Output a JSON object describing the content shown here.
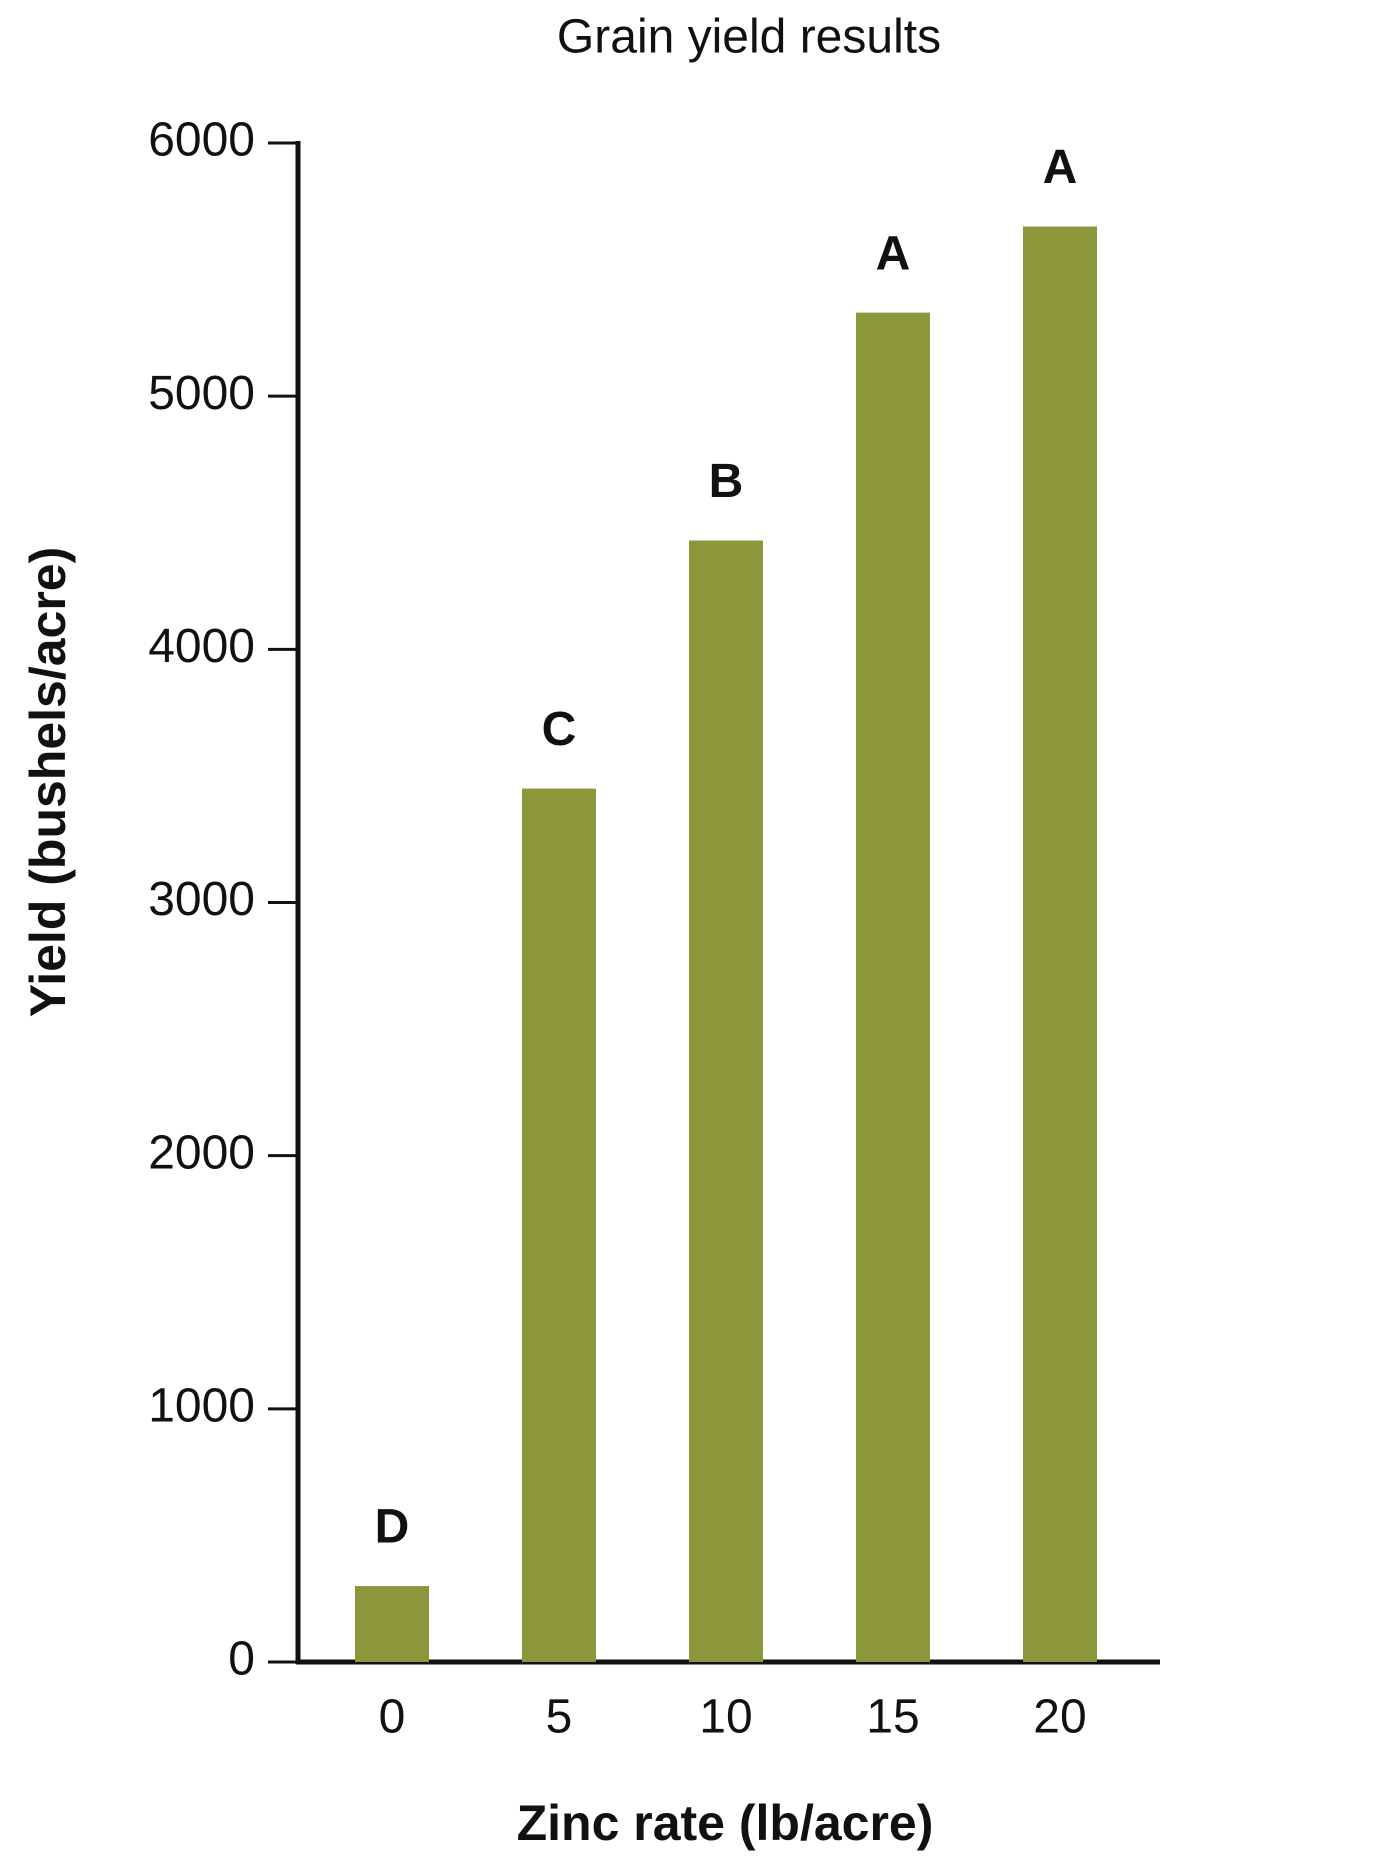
{
  "chart_data": {
    "type": "bar",
    "title": "Grain yield results",
    "x_label": "Zinc rate (lb/acre)",
    "y_label": "Yield (bushels/acre)",
    "categories": [
      "0",
      "5",
      "10",
      "15",
      "20"
    ],
    "values": [
      300,
      3450,
      4430,
      5330,
      5670
    ],
    "significance_labels": [
      "D",
      "C",
      "B",
      "A",
      "A"
    ],
    "color": "#8b973a",
    "ylim": [
      0,
      6000
    ],
    "yticks": [
      0,
      1000,
      2000,
      3000,
      4000,
      5000,
      6000
    ],
    "grid": false
  }
}
